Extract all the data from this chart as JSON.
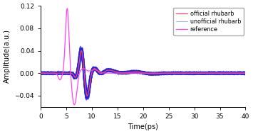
{
  "title": "",
  "xlabel": "Time(ps)",
  "ylabel": "Amplitude(a.u.)",
  "xlim": [
    0,
    40
  ],
  "ylim": [
    -0.06,
    0.12
  ],
  "yticks": [
    -0.04,
    0.0,
    0.04,
    0.08,
    0.12
  ],
  "xticks": [
    0,
    5,
    10,
    15,
    20,
    25,
    30,
    35,
    40
  ],
  "official_color": "#ff4466",
  "unofficial_color": "#2222dd",
  "reference_color": "#ff44ee",
  "legend_labels": [
    "official rhubarb",
    "unofficial rhubarb",
    "reference"
  ],
  "figsize": [
    3.55,
    1.89
  ],
  "dpi": 100,
  "background_color": "#ffffff"
}
